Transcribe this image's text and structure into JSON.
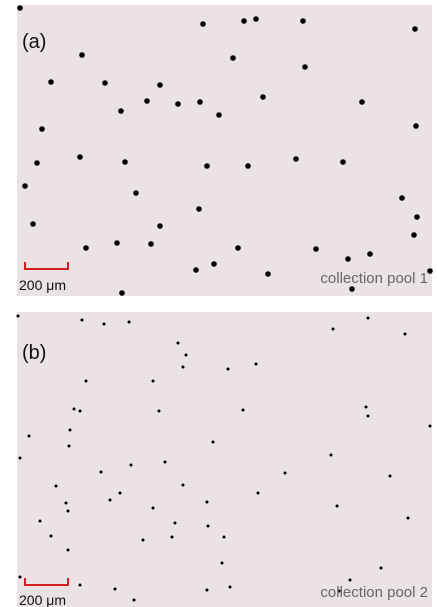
{
  "panels": [
    {
      "label": "(a)",
      "scale_bar": "200 μm",
      "caption": "collection pool 1"
    },
    {
      "label": "(b)",
      "scale_bar": "200 μm",
      "caption": "collection pool 2"
    }
  ]
}
